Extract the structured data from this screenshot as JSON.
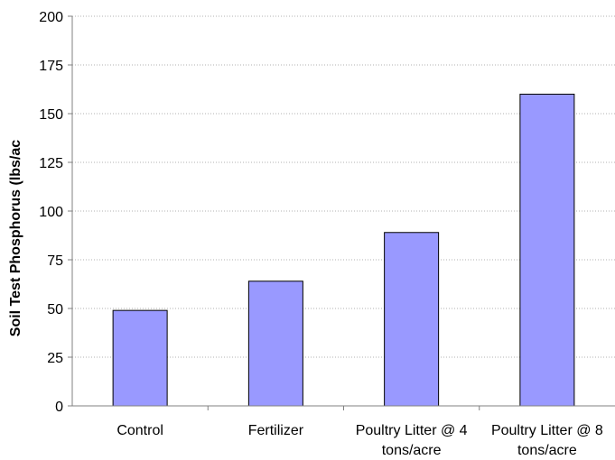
{
  "chart_data": {
    "type": "bar",
    "title": "",
    "xlabel": "",
    "ylabel": "Soil Test Phosphorus (lbs/ac",
    "categories": [
      [
        "Control"
      ],
      [
        "Fertilizer"
      ],
      [
        "Poultry Litter @ 4",
        "tons/acre"
      ],
      [
        "Poultry Litter @ 8",
        "tons/acre"
      ]
    ],
    "values": [
      49,
      64,
      89,
      160
    ],
    "ylim": [
      0,
      200
    ],
    "yticks": [
      0,
      25,
      50,
      75,
      100,
      125,
      150,
      175,
      200
    ],
    "grid": true,
    "legend": "none",
    "colors": {
      "bar_fill": "#9999ff",
      "bar_stroke": "#000000",
      "grid": "#b0b0b0",
      "axis": "#808080"
    }
  }
}
